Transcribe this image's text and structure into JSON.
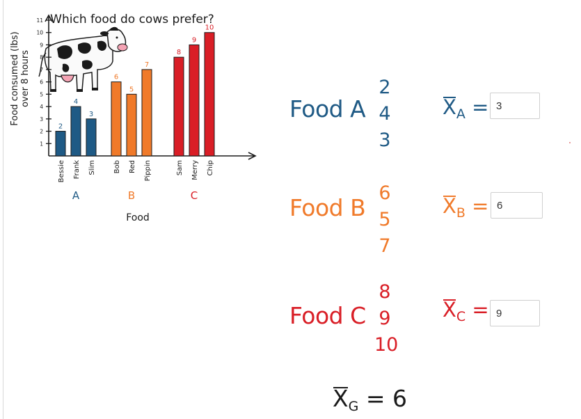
{
  "chart_data": {
    "type": "bar",
    "title": "Which food do cows prefer?",
    "xlabel": "Food",
    "ylabel": "Food consumed (lbs) over 8 hours",
    "ylim": [
      0,
      11
    ],
    "yticks": [
      1,
      2,
      3,
      4,
      5,
      6,
      7,
      8,
      9,
      10,
      11
    ],
    "groups": [
      {
        "name": "A",
        "color": "#1f5a85",
        "bars": [
          {
            "label": "Bessie",
            "value": 2
          },
          {
            "label": "Frank",
            "value": 4
          },
          {
            "label": "Slim",
            "value": 3
          }
        ]
      },
      {
        "name": "B",
        "color": "#f07a2a",
        "bars": [
          {
            "label": "Bob",
            "value": 6
          },
          {
            "label": "Red",
            "value": 5
          },
          {
            "label": "Pippin",
            "value": 7
          }
        ]
      },
      {
        "name": "C",
        "color": "#d91e26",
        "bars": [
          {
            "label": "Sam",
            "value": 8
          },
          {
            "label": "Merry",
            "value": 9
          },
          {
            "label": "Chip",
            "value": 10
          }
        ]
      }
    ]
  },
  "foods": [
    {
      "label": "Food A",
      "values": [
        "2",
        "4",
        "3"
      ],
      "mean_letter": "A",
      "mean_sign": "=",
      "mean_value": "3",
      "color": "#1f5a85"
    },
    {
      "label": "Food B",
      "values": [
        "6",
        "5",
        "7"
      ],
      "mean_letter": "B",
      "mean_sign": "=",
      "mean_value": "6",
      "color": "#f07a2a"
    },
    {
      "label": "Food C",
      "values": [
        "8",
        "9",
        "10"
      ],
      "mean_letter": "C",
      "mean_sign": "=",
      "mean_value": "9",
      "color": "#d91e26"
    }
  ],
  "grand_mean": {
    "symbol": "X",
    "sub": "G",
    "sign": "=",
    "value": "6"
  },
  "icons": {
    "illustration": "cow-illustration"
  }
}
